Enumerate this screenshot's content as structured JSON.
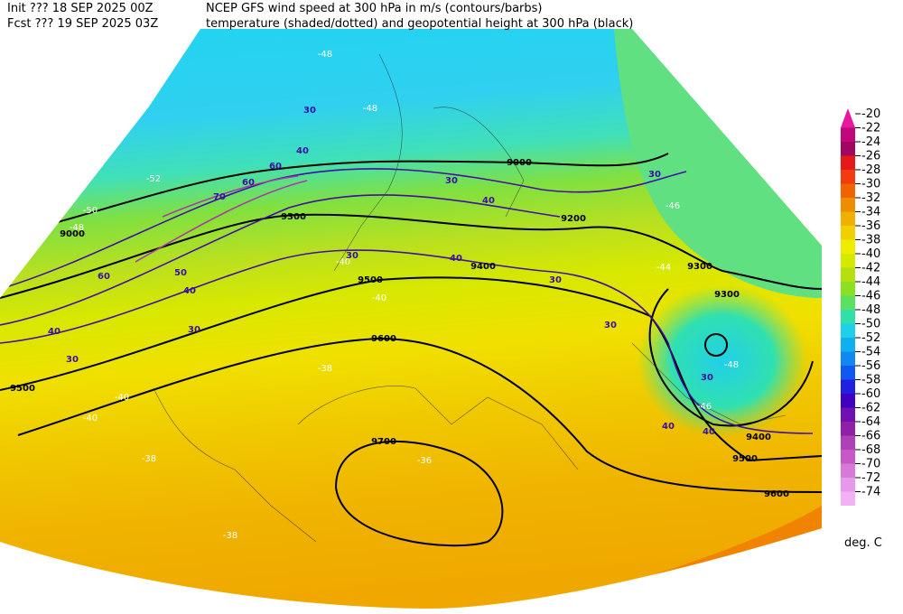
{
  "header": {
    "init": "Init  ??? 18 SEP 2025 00Z",
    "fcst": "Fcst ??? 19 SEP 2025 03Z",
    "line1": "NCEP GFS wind speed at 300 hPa in m/s (contours/barbs)",
    "line2": "temperature (shaded/dotted) and geopotential height at 300 hPa (black)"
  },
  "colorbar": {
    "labels": [
      "-20",
      "-22",
      "-24",
      "-26",
      "-28",
      "-30",
      "-32",
      "-34",
      "-36",
      "-38",
      "-40",
      "-42",
      "-44",
      "-46",
      "-48",
      "-50",
      "-52",
      "-54",
      "-56",
      "-58",
      "-60",
      "-62",
      "-64",
      "-66",
      "-68",
      "-70",
      "-72",
      "-74"
    ],
    "colors": [
      "#e8189c",
      "#c0087c",
      "#a00860",
      "#e81818",
      "#f03c10",
      "#f06400",
      "#f08c00",
      "#f0b000",
      "#f0d000",
      "#f0ec00",
      "#d4e800",
      "#b4e010",
      "#8ce024",
      "#5ce060",
      "#30e0a8",
      "#20d0e8",
      "#10b0f0",
      "#1088f0",
      "#1058f0",
      "#2020e0",
      "#4000c0",
      "#7010b0",
      "#9020a8",
      "#b040b8",
      "#c858c8",
      "#d878d8",
      "#e898e8",
      "#f4b0f4"
    ],
    "unit": "deg. C"
  },
  "height_labels": [
    "9000",
    "9300",
    "9500",
    "9600",
    "9700",
    "9500",
    "9300",
    "9300",
    "9400",
    "9500",
    "9600",
    "9000",
    "9200",
    "9400"
  ],
  "wind_labels": [
    "30",
    "40",
    "60",
    "70",
    "60",
    "50",
    "60",
    "40",
    "30",
    "40",
    "30",
    "30",
    "40",
    "30",
    "30",
    "30",
    "30",
    "40",
    "40",
    "30",
    "40"
  ],
  "temp_labels": [
    "-48",
    "-48",
    "-52",
    "-50",
    "-48",
    "-46",
    "-44",
    "-40",
    "-40",
    "-38",
    "-40",
    "-38",
    "-38",
    "-36",
    "-48",
    "-46",
    "-40"
  ]
}
